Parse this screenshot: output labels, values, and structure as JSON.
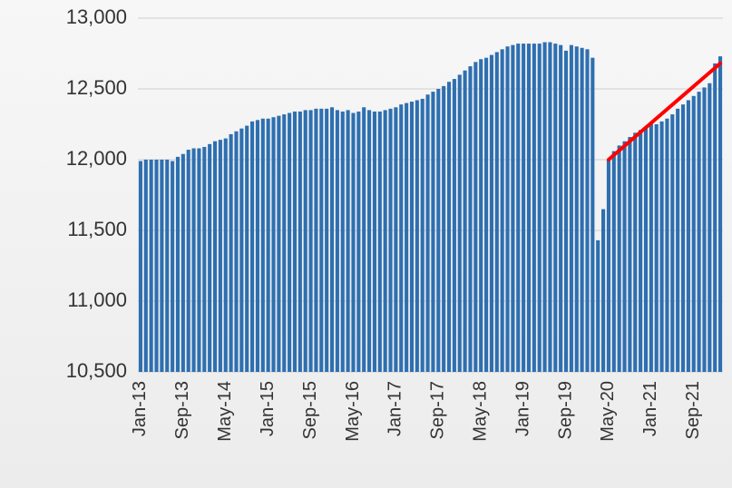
{
  "chart_data": {
    "type": "bar",
    "categories": [
      "Jan-13",
      null,
      null,
      null,
      null,
      null,
      null,
      null,
      "Sep-13",
      null,
      null,
      null,
      null,
      null,
      null,
      null,
      "May-14",
      null,
      null,
      null,
      null,
      null,
      null,
      null,
      "Jan-15",
      null,
      null,
      null,
      null,
      null,
      null,
      null,
      "Sep-15",
      null,
      null,
      null,
      null,
      null,
      null,
      null,
      "May-16",
      null,
      null,
      null,
      null,
      null,
      null,
      null,
      "Jan-17",
      null,
      null,
      null,
      null,
      null,
      null,
      null,
      "Sep-17",
      null,
      null,
      null,
      null,
      null,
      null,
      null,
      "May-18",
      null,
      null,
      null,
      null,
      null,
      null,
      null,
      "Jan-19",
      null,
      null,
      null,
      null,
      null,
      null,
      null,
      "Sep-19",
      null,
      null,
      null,
      null,
      null,
      null,
      null,
      "May-20",
      null,
      null,
      null,
      null,
      null,
      null,
      null,
      "Jan-21",
      null,
      null,
      null,
      null,
      null,
      null,
      null,
      "Sep-21",
      null,
      null,
      null,
      null,
      null
    ],
    "values": [
      11990,
      12000,
      12000,
      12000,
      12000,
      12000,
      11990,
      12020,
      12040,
      12070,
      12080,
      12080,
      12090,
      12110,
      12130,
      12140,
      12150,
      12180,
      12200,
      12220,
      12240,
      12270,
      12280,
      12290,
      12290,
      12300,
      12310,
      12320,
      12330,
      12340,
      12340,
      12350,
      12350,
      12360,
      12360,
      12360,
      12370,
      12350,
      12340,
      12350,
      12330,
      12340,
      12370,
      12350,
      12340,
      12340,
      12350,
      12360,
      12370,
      12390,
      12400,
      12410,
      12420,
      12430,
      12460,
      12480,
      12500,
      12520,
      12550,
      12570,
      12600,
      12630,
      12660,
      12690,
      12710,
      12720,
      12740,
      12760,
      12780,
      12800,
      12810,
      12820,
      12820,
      12820,
      12820,
      12820,
      12830,
      12830,
      12820,
      12810,
      12770,
      12810,
      12800,
      12790,
      12780,
      12720,
      11430,
      11650,
      12000,
      12060,
      12100,
      12130,
      12160,
      12190,
      12210,
      12230,
      12260,
      12250,
      12270,
      12290,
      12320,
      12360,
      12390,
      12420,
      12450,
      12480,
      12510,
      12540,
      12680,
      12730
    ],
    "color": "#2e6fb0",
    "ylim": [
      10500,
      13000
    ],
    "yticks": [
      {
        "value": 10500,
        "label": "10,500"
      },
      {
        "value": 11000,
        "label": "11,000"
      },
      {
        "value": 11500,
        "label": "11,500"
      },
      {
        "value": 12000,
        "label": "12,000"
      },
      {
        "value": 12500,
        "label": "12,500"
      },
      {
        "value": 13000,
        "label": "13,000"
      }
    ],
    "grid": true,
    "trend_line": {
      "color": "#ff0000",
      "start_index": 88,
      "end_index": 109,
      "values": [
        12000,
        12680
      ]
    }
  }
}
